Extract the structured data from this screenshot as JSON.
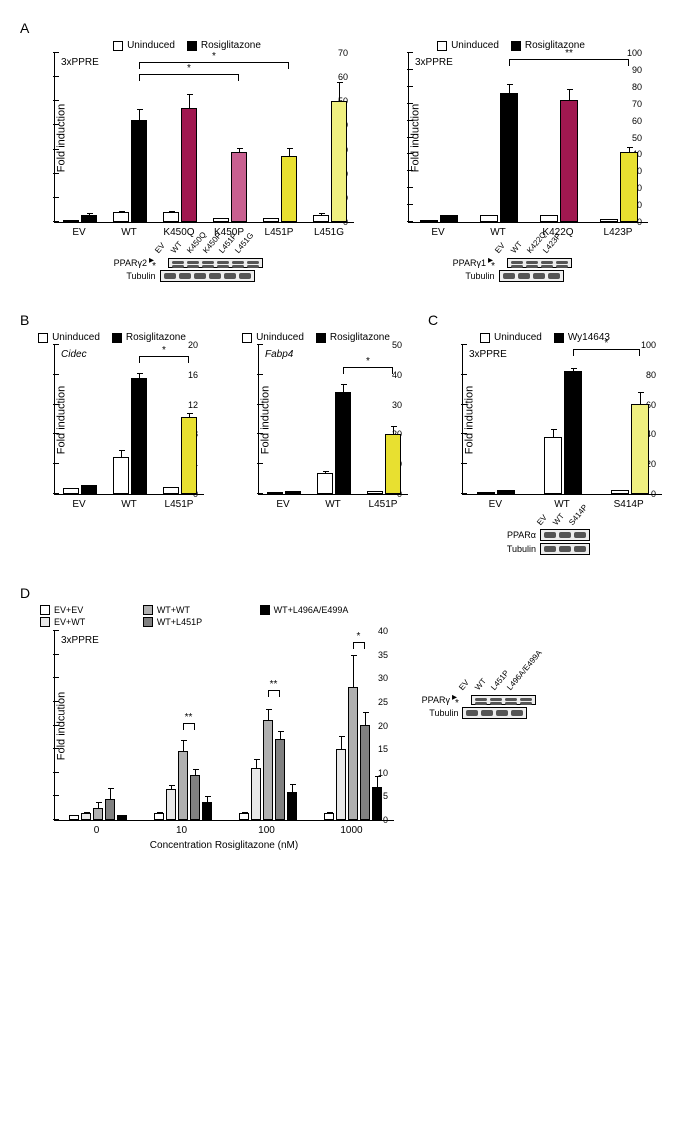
{
  "legend_uninduced": "Uninduced",
  "legend_rosi": "Rosiglitazone",
  "legend_wy": "Wy14643",
  "color_white": "#ffffff",
  "color_black": "#000000",
  "color_magenta_dark": "#a01850",
  "color_magenta_light": "#c86090",
  "color_yellow_dark": "#e8e030",
  "color_yellow_light": "#f0f080",
  "color_grey_lt": "#d8d8d8",
  "color_grey_md": "#a0a0a0",
  "color_grey_dk": "#606060",
  "y_label": "Fold induction",
  "y_label_D": "Fold indcution",
  "panelA_left": {
    "title": "3xPPRE",
    "ymax": 70,
    "ystep": 10,
    "groups": [
      "EV",
      "WT",
      "K450Q",
      "K450P",
      "L451P",
      "L451G"
    ],
    "bars": [
      [
        {
          "v": 1,
          "e": 0,
          "c": "#ffffff"
        },
        {
          "v": 3,
          "e": 1,
          "c": "#000000"
        }
      ],
      [
        {
          "v": 4,
          "e": 1,
          "c": "#ffffff"
        },
        {
          "v": 42,
          "e": 5,
          "c": "#000000"
        }
      ],
      [
        {
          "v": 4,
          "e": 1,
          "c": "#ffffff"
        },
        {
          "v": 47,
          "e": 6,
          "c": "#a01850"
        }
      ],
      [
        {
          "v": 1.5,
          "e": 0,
          "c": "#ffffff"
        },
        {
          "v": 29,
          "e": 2,
          "c": "#c86090"
        }
      ],
      [
        {
          "v": 1.5,
          "e": 0,
          "c": "#ffffff"
        },
        {
          "v": 27,
          "e": 4,
          "c": "#e8e030"
        }
      ],
      [
        {
          "v": 3,
          "e": 1,
          "c": "#ffffff"
        },
        {
          "v": 50,
          "e": 8,
          "c": "#f0f080"
        }
      ]
    ],
    "sig": [
      {
        "from": 1,
        "to": 3,
        "y": 58,
        "label": "*"
      },
      {
        "from": 1,
        "to": 4,
        "y": 63,
        "label": "*"
      }
    ],
    "blot_cols": [
      "EV",
      "WT",
      "K450Q",
      "K450P",
      "L451P",
      "L451G"
    ],
    "blot_rows": [
      {
        "name": "PPARγ2",
        "double": true
      },
      {
        "name": "Tubulin",
        "double": false
      }
    ]
  },
  "panelA_right": {
    "title": "3xPPRE",
    "ymax": 100,
    "ystep": 10,
    "groups": [
      "EV",
      "WT",
      "K422Q",
      "L423P"
    ],
    "bars": [
      [
        {
          "v": 1,
          "e": 0,
          "c": "#ffffff"
        },
        {
          "v": 4,
          "e": 1,
          "c": "#000000"
        }
      ],
      [
        {
          "v": 4,
          "e": 1,
          "c": "#ffffff"
        },
        {
          "v": 76,
          "e": 6,
          "c": "#000000"
        }
      ],
      [
        {
          "v": 4,
          "e": 1,
          "c": "#ffffff"
        },
        {
          "v": 72,
          "e": 7,
          "c": "#a01850"
        }
      ],
      [
        {
          "v": 1.5,
          "e": 0,
          "c": "#ffffff"
        },
        {
          "v": 41,
          "e": 4,
          "c": "#e8e030"
        }
      ]
    ],
    "sig": [
      {
        "from": 1,
        "to": 3,
        "y": 92,
        "label": "**"
      }
    ],
    "blot_cols": [
      "EV",
      "WT",
      "K422Q",
      "L423P"
    ],
    "blot_rows": [
      {
        "name": "PPARγ1",
        "double": true
      },
      {
        "name": "Tubulin",
        "double": false
      }
    ]
  },
  "panelB_left": {
    "title": "Cidec",
    "title_italic": true,
    "ymax": 20,
    "ystep": 4,
    "groups": [
      "EV",
      "WT",
      "L451P"
    ],
    "bars": [
      [
        {
          "v": 0.8,
          "e": 0,
          "c": "#ffffff"
        },
        {
          "v": 1.2,
          "e": 0,
          "c": "#000000"
        }
      ],
      [
        {
          "v": 5,
          "e": 1,
          "c": "#ffffff"
        },
        {
          "v": 15.5,
          "e": 0.8,
          "c": "#000000"
        }
      ],
      [
        {
          "v": 1,
          "e": 0,
          "c": "#ffffff"
        },
        {
          "v": 10.3,
          "e": 0.7,
          "c": "#e8e030"
        }
      ]
    ],
    "sig": [
      {
        "from": 1,
        "to": 2,
        "y": 17.5,
        "label": "*"
      }
    ]
  },
  "panelB_right": {
    "title": "Fabp4",
    "title_italic": true,
    "ymax": 50,
    "ystep": 10,
    "groups": [
      "EV",
      "WT",
      "L451P"
    ],
    "bars": [
      [
        {
          "v": 0.5,
          "e": 0,
          "c": "#ffffff"
        },
        {
          "v": 1,
          "e": 0,
          "c": "#000000"
        }
      ],
      [
        {
          "v": 7,
          "e": 1,
          "c": "#ffffff"
        },
        {
          "v": 34,
          "e": 3,
          "c": "#000000"
        }
      ],
      [
        {
          "v": 1,
          "e": 0,
          "c": "#ffffff"
        },
        {
          "v": 20,
          "e": 3,
          "c": "#e8e030"
        }
      ]
    ],
    "sig": [
      {
        "from": 1,
        "to": 2,
        "y": 40,
        "label": "*"
      }
    ]
  },
  "panelC": {
    "title": "3xPPRE",
    "ymax": 100,
    "ystep": 20,
    "legend_right": "Wy14643",
    "groups": [
      "EV",
      "WT",
      "S414P"
    ],
    "bars": [
      [
        {
          "v": 1.5,
          "e": 0,
          "c": "#ffffff"
        },
        {
          "v": 3,
          "e": 0.5,
          "c": "#000000"
        }
      ],
      [
        {
          "v": 38,
          "e": 6,
          "c": "#ffffff"
        },
        {
          "v": 82,
          "e": 3,
          "c": "#000000"
        }
      ],
      [
        {
          "v": 3,
          "e": 0.5,
          "c": "#ffffff"
        },
        {
          "v": 60,
          "e": 9,
          "c": "#f0f080"
        }
      ]
    ],
    "sig": [
      {
        "from": 1,
        "to": 2,
        "y": 92,
        "label": "*"
      }
    ],
    "blot_cols": [
      "EV",
      "WT",
      "S414P"
    ],
    "blot_rows": [
      {
        "name": "PPARα",
        "double": false
      },
      {
        "name": "Tubulin",
        "double": false
      }
    ]
  },
  "panelD": {
    "title": "3xPPRE",
    "ymax": 40,
    "ystep": 5,
    "legend": [
      {
        "label": "EV+EV",
        "c": "#ffffff"
      },
      {
        "label": "EV+WT",
        "c": "#e8e8e8"
      },
      {
        "label": "WT+WT",
        "c": "#b0b0b0"
      },
      {
        "label": "WT+L451P",
        "c": "#808080"
      },
      {
        "label": "WT+L496A/E499A",
        "c": "#000000"
      }
    ],
    "x_title": "Concentration Rosiglitazone (nM)",
    "groups": [
      "0",
      "10",
      "100",
      "1000"
    ],
    "bars": [
      [
        {
          "v": 1,
          "e": 0.3,
          "c": "#ffffff"
        },
        {
          "v": 1.5,
          "e": 0.4,
          "c": "#e8e8e8"
        },
        {
          "v": 2.5,
          "e": 1.5,
          "c": "#b0b0b0"
        },
        {
          "v": 4.5,
          "e": 2.5,
          "c": "#808080"
        },
        {
          "v": 1,
          "e": 0.3,
          "c": "#000000"
        }
      ],
      [
        {
          "v": 1.5,
          "e": 0.3,
          "c": "#ffffff"
        },
        {
          "v": 6.5,
          "e": 1,
          "c": "#e8e8e8"
        },
        {
          "v": 14.5,
          "e": 2.5,
          "c": "#b0b0b0"
        },
        {
          "v": 9.5,
          "e": 1.5,
          "c": "#808080"
        },
        {
          "v": 3.8,
          "e": 1.5,
          "c": "#000000"
        }
      ],
      [
        {
          "v": 1.5,
          "e": 0.3,
          "c": "#ffffff"
        },
        {
          "v": 11,
          "e": 2,
          "c": "#e8e8e8"
        },
        {
          "v": 21,
          "e": 2.5,
          "c": "#b0b0b0"
        },
        {
          "v": 17,
          "e": 2,
          "c": "#808080"
        },
        {
          "v": 5.8,
          "e": 2,
          "c": "#000000"
        }
      ],
      [
        {
          "v": 1.5,
          "e": 0.3,
          "c": "#ffffff"
        },
        {
          "v": 15,
          "e": 3,
          "c": "#e8e8e8"
        },
        {
          "v": 28,
          "e": 7,
          "c": "#b0b0b0"
        },
        {
          "v": 20,
          "e": 3,
          "c": "#808080"
        },
        {
          "v": 7,
          "e": 2.5,
          "c": "#000000"
        }
      ]
    ],
    "sig": [
      {
        "g": 1,
        "from": 2,
        "to": 3,
        "y": 19,
        "label": "**"
      },
      {
        "g": 2,
        "from": 2,
        "to": 3,
        "y": 26,
        "label": "**"
      },
      {
        "g": 3,
        "from": 2,
        "to": 3,
        "y": 36,
        "label": "*"
      }
    ],
    "blot_cols": [
      "EV",
      "WT",
      "L451P",
      "L496A/E499A"
    ],
    "blot_rows": [
      {
        "name": "PPARγ",
        "double": true
      },
      {
        "name": "Tubulin",
        "double": false
      }
    ]
  },
  "panel_letters": {
    "A": "A",
    "B": "B",
    "C": "C",
    "D": "D"
  }
}
